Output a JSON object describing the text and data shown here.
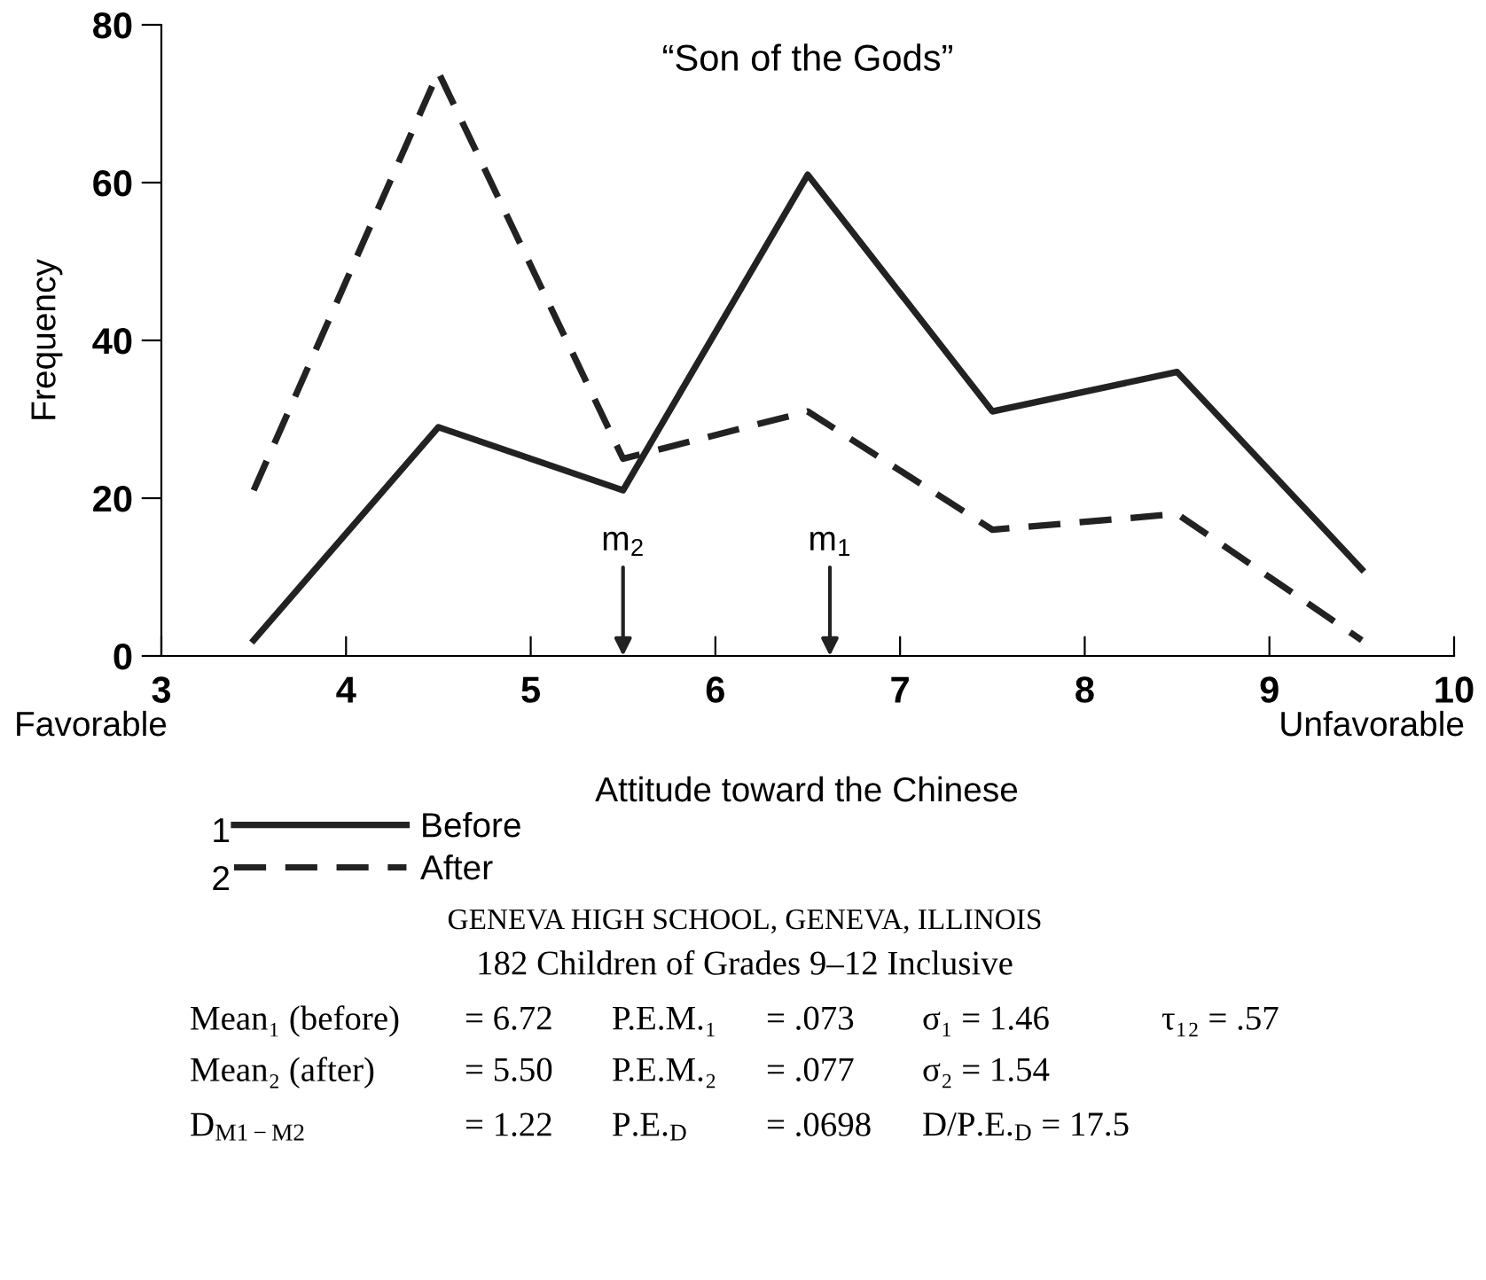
{
  "chart_data": {
    "type": "line",
    "title": "“Son of the Gods”",
    "xlabel": "Attitude toward the Chinese",
    "ylabel": "Frequency",
    "x": [
      3.5,
      4.5,
      5.5,
      6.5,
      7.5,
      8.5,
      9.5
    ],
    "series": [
      {
        "name": "Before",
        "color": "#222222",
        "line_style": "solid",
        "values": [
          2,
          29,
          21,
          61,
          31,
          36,
          11
        ]
      },
      {
        "name": "After",
        "color": "#222222",
        "line_style": "dashed",
        "values": [
          21,
          74,
          25,
          31,
          16,
          18,
          2
        ]
      }
    ],
    "xlim": [
      3,
      10
    ],
    "xticks": [
      3,
      4,
      5,
      6,
      7,
      8,
      9,
      10
    ],
    "ylim": [
      0,
      80
    ],
    "yticks": [
      0,
      20,
      40,
      60,
      80
    ],
    "grid": false,
    "legend": "bottom",
    "marker": "none",
    "annotations": [
      "m$_{2}$",
      "m$_{1}$",
      "Favorable",
      "Unfavorable",
      "1",
      "2",
      "GENEVA HIGH SCHOOL, GENEVA, ILLINOIS",
      "182 Children of Grades 9–12 Inclusive",
      "Mean₁ (before)",
      "= 6.72",
      "P.E.M.₁",
      "= .073",
      "σ₁ = 1.46",
      "τ₁₂ = .57",
      "Mean₂ (after)",
      "= 5.50",
      "P.E.M.₂",
      "= .077",
      "σ₂ = 1.54",
      "D$_{M1−M2}$",
      "= 1.22",
      "P.E.$_{D}$",
      "= .0698",
      "D/P.E.$_{D}$ = 17.5"
    ]
  }
}
